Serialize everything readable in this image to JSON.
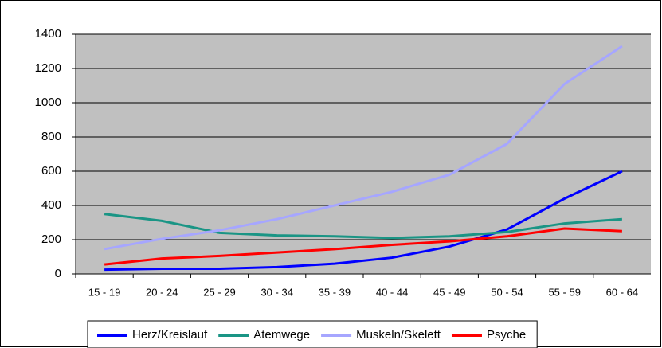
{
  "chart_data": {
    "type": "line",
    "categories": [
      "15 - 19",
      "20 - 24",
      "25 - 29",
      "30 - 34",
      "35 - 39",
      "40 - 44",
      "45 - 49",
      "50 - 54",
      "55 - 59",
      "60 - 64"
    ],
    "series": [
      {
        "name": "Herz/Kreislauf",
        "color": "#0000ff",
        "values": [
          25,
          30,
          30,
          40,
          60,
          95,
          160,
          260,
          440,
          600
        ]
      },
      {
        "name": "Atemwege",
        "color": "#1a9585",
        "values": [
          350,
          310,
          240,
          225,
          220,
          210,
          220,
          245,
          295,
          320
        ]
      },
      {
        "name": "Muskeln/Skelett",
        "color": "#a6a6ff",
        "values": [
          145,
          205,
          255,
          320,
          400,
          480,
          580,
          760,
          1110,
          1330
        ]
      },
      {
        "name": "Psyche",
        "color": "#ff0000",
        "values": [
          55,
          90,
          105,
          125,
          145,
          170,
          190,
          220,
          265,
          250
        ]
      }
    ],
    "ylim": [
      0,
      1400
    ],
    "yticks": [
      0,
      200,
      400,
      600,
      800,
      1000,
      1200,
      1400
    ],
    "grid": true,
    "legend": "bottom",
    "plot_background": "#c0c0c0"
  }
}
